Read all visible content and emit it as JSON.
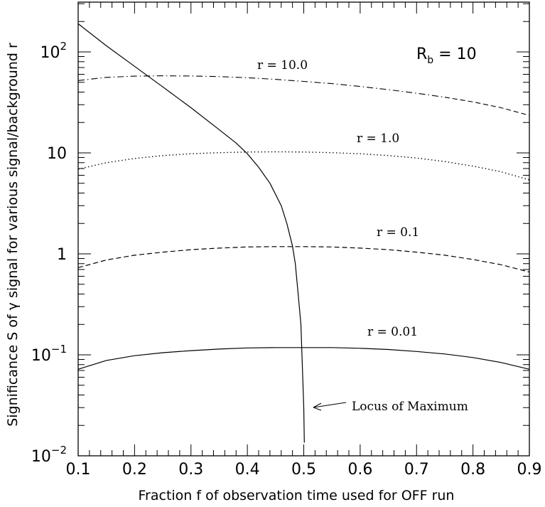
{
  "chart_data": {
    "type": "line",
    "xlabel": "Fraction f of observation time used for OFF run",
    "ylabel": "Significance S of γ signal for various signal/background r",
    "xlim": [
      0.1,
      0.9
    ],
    "ylim": [
      0.01,
      300
    ],
    "yscale": "log",
    "grid": false,
    "x_ticks": [
      "0.1",
      "0.2",
      "0.3",
      "0.4",
      "0.5",
      "0.6",
      "0.7",
      "0.8",
      "0.9"
    ],
    "y_ticks": [
      {
        "value": 0.01,
        "base": "10",
        "exp": "−2"
      },
      {
        "value": 0.1,
        "base": "10",
        "exp": "−1"
      },
      {
        "value": 1,
        "base": "1",
        "exp": ""
      },
      {
        "value": 10,
        "base": "10",
        "exp": ""
      },
      {
        "value": 100,
        "base": "10",
        "exp": "2"
      }
    ],
    "annotation": {
      "main": "R",
      "sub": "b",
      "rest": " = 10"
    },
    "series": [
      {
        "name": "r = 10.0",
        "style": "dashdot-to-dash",
        "x": [
          0.1,
          0.15,
          0.2,
          0.25,
          0.3,
          0.35,
          0.4,
          0.45,
          0.5,
          0.55,
          0.6,
          0.65,
          0.7,
          0.75,
          0.8,
          0.85,
          0.9
        ],
        "y": [
          52,
          56,
          57.5,
          58,
          57.7,
          57,
          55.5,
          53.5,
          51,
          48.5,
          45.5,
          42.3,
          39,
          35.6,
          32,
          28,
          23.5
        ]
      },
      {
        "name": "r = 1.0",
        "style": "dotted",
        "x": [
          0.1,
          0.15,
          0.2,
          0.25,
          0.3,
          0.35,
          0.4,
          0.45,
          0.5,
          0.55,
          0.6,
          0.65,
          0.7,
          0.75,
          0.8,
          0.85,
          0.9
        ],
        "y": [
          6.9,
          8.0,
          8.8,
          9.4,
          9.8,
          10.05,
          10.2,
          10.25,
          10.2,
          10.05,
          9.8,
          9.4,
          8.9,
          8.2,
          7.4,
          6.5,
          5.4
        ]
      },
      {
        "name": "r = 0.1",
        "style": "dashed",
        "x": [
          0.1,
          0.15,
          0.2,
          0.25,
          0.3,
          0.35,
          0.4,
          0.45,
          0.5,
          0.55,
          0.6,
          0.65,
          0.7,
          0.75,
          0.8,
          0.85,
          0.9
        ],
        "y": [
          0.73,
          0.87,
          0.97,
          1.04,
          1.1,
          1.14,
          1.17,
          1.18,
          1.18,
          1.17,
          1.14,
          1.1,
          1.04,
          0.97,
          0.88,
          0.78,
          0.66
        ]
      },
      {
        "name": "r = 0.01",
        "style": "solid",
        "x": [
          0.1,
          0.15,
          0.2,
          0.25,
          0.3,
          0.35,
          0.4,
          0.45,
          0.5,
          0.55,
          0.6,
          0.65,
          0.7,
          0.75,
          0.8,
          0.85,
          0.9
        ],
        "y": [
          0.072,
          0.088,
          0.098,
          0.105,
          0.11,
          0.114,
          0.117,
          0.118,
          0.118,
          0.118,
          0.116,
          0.113,
          0.108,
          0.102,
          0.094,
          0.084,
          0.072
        ]
      },
      {
        "name": "Locus of Maximum",
        "style": "solid",
        "x": [
          0.1,
          0.15,
          0.2,
          0.25,
          0.3,
          0.35,
          0.38,
          0.4,
          0.42,
          0.44,
          0.46,
          0.47,
          0.48,
          0.485,
          0.49,
          0.495,
          0.5,
          0.501
        ],
        "y": [
          190,
          115,
          72,
          45,
          28,
          17,
          12.5,
          9.8,
          7.2,
          5.0,
          3.0,
          2.0,
          1.2,
          0.8,
          0.4,
          0.2,
          0.03,
          0.0135
        ]
      }
    ],
    "labels": {
      "r10": "r = 10.0",
      "r1": "r = 1.0",
      "r01": "r = 0.1",
      "r001": "r = 0.01",
      "locus": "Locus of Maximum"
    }
  }
}
